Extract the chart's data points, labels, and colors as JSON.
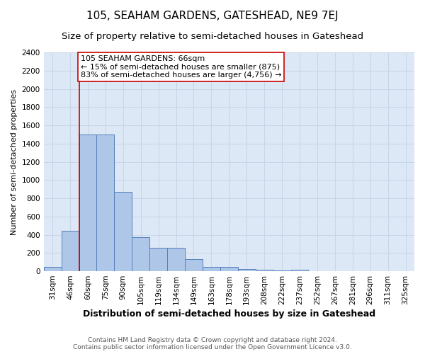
{
  "title": "105, SEAHAM GARDENS, GATESHEAD, NE9 7EJ",
  "subtitle": "Size of property relative to semi-detached houses in Gateshead",
  "xlabel": "Distribution of semi-detached houses by size in Gateshead",
  "ylabel": "Number of semi-detached properties",
  "footer_line1": "Contains HM Land Registry data © Crown copyright and database right 2024.",
  "footer_line2": "Contains public sector information licensed under the Open Government Licence v3.0.",
  "categories": [
    "31sqm",
    "46sqm",
    "60sqm",
    "75sqm",
    "90sqm",
    "105sqm",
    "119sqm",
    "134sqm",
    "149sqm",
    "163sqm",
    "178sqm",
    "193sqm",
    "208sqm",
    "222sqm",
    "237sqm",
    "252sqm",
    "267sqm",
    "281sqm",
    "296sqm",
    "311sqm",
    "325sqm"
  ],
  "values": [
    50,
    440,
    1500,
    1500,
    870,
    375,
    260,
    260,
    135,
    50,
    50,
    25,
    15,
    10,
    15,
    0,
    0,
    0,
    0,
    0,
    0
  ],
  "bar_color": "#aec6e8",
  "bar_edge_color": "#5580bb",
  "property_line_color": "#cc0000",
  "property_line_index": 1.5,
  "annotation_text": "105 SEAHAM GARDENS: 66sqm\n← 15% of semi-detached houses are smaller (875)\n83% of semi-detached houses are larger (4,756) →",
  "annotation_box_color": "#ffffff",
  "annotation_box_edge_color": "#cc0000",
  "ylim": [
    0,
    2400
  ],
  "yticks": [
    0,
    200,
    400,
    600,
    800,
    1000,
    1200,
    1400,
    1600,
    1800,
    2000,
    2200,
    2400
  ],
  "grid_color": "#c8d4e8",
  "background_color": "#dce8f5",
  "title_fontsize": 11,
  "subtitle_fontsize": 9.5,
  "xlabel_fontsize": 9,
  "ylabel_fontsize": 8,
  "tick_fontsize": 7.5,
  "annotation_fontsize": 8,
  "footer_fontsize": 6.5
}
